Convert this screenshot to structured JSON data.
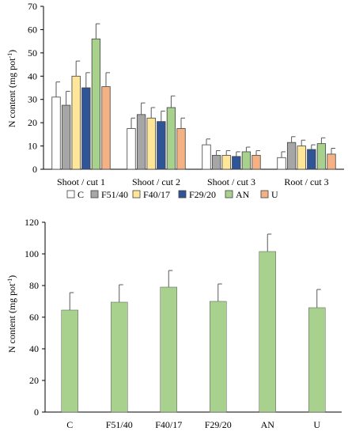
{
  "chart_data": [
    {
      "type": "bar",
      "ylabel": "N content (mg pot",
      "ylabel_sup": "-1",
      "ylabel_close": ")",
      "ylim": [
        0,
        70
      ],
      "yticks": [
        0,
        10,
        20,
        30,
        40,
        50,
        60,
        70
      ],
      "grid": false,
      "legend_position": "bottom",
      "categories": [
        "Shoot / cut 1",
        "Shoot / cut 2",
        "Shoot / cut 3",
        "Root / cut 3"
      ],
      "series": [
        {
          "name": "C",
          "color": "#ffffff",
          "values": [
            31,
            17.5,
            10.5,
            5
          ],
          "errors": [
            6.5,
            4.5,
            2.5,
            2.5
          ]
        },
        {
          "name": "F51/40",
          "color": "#a6a6a6",
          "values": [
            27.5,
            23.5,
            6,
            11.5
          ],
          "errors": [
            6,
            5,
            2,
            2.5
          ]
        },
        {
          "name": "F40/17",
          "color": "#ffe699",
          "values": [
            40,
            22,
            6,
            10
          ],
          "errors": [
            6.5,
            4.5,
            2,
            2.5
          ]
        },
        {
          "name": "F29/20",
          "color": "#2f5597",
          "values": [
            35,
            20.5,
            5.5,
            8.5
          ],
          "errors": [
            6.5,
            4.5,
            2,
            2
          ]
        },
        {
          "name": "AN",
          "color": "#a9d18e",
          "values": [
            56,
            26.5,
            7.5,
            11
          ],
          "errors": [
            6.5,
            5,
            2,
            2.5
          ]
        },
        {
          "name": "U",
          "color": "#f4b183",
          "values": [
            35.5,
            17.5,
            6,
            6.5
          ],
          "errors": [
            6,
            4.5,
            2,
            2.5
          ]
        }
      ]
    },
    {
      "type": "bar",
      "ylabel": "N content (mg pot",
      "ylabel_sup": "-1",
      "ylabel_close": ")",
      "ylim": [
        0,
        120
      ],
      "yticks": [
        0,
        20,
        40,
        60,
        80,
        100,
        120
      ],
      "grid": false,
      "color": "#a9d18e",
      "categories": [
        "C",
        "F51/40",
        "F40/17",
        "F29/20",
        "AN",
        "U"
      ],
      "values": [
        64.5,
        69.5,
        79,
        70,
        101.5,
        66
      ],
      "errors": [
        11,
        11,
        10.5,
        11,
        11,
        11.5
      ]
    }
  ]
}
